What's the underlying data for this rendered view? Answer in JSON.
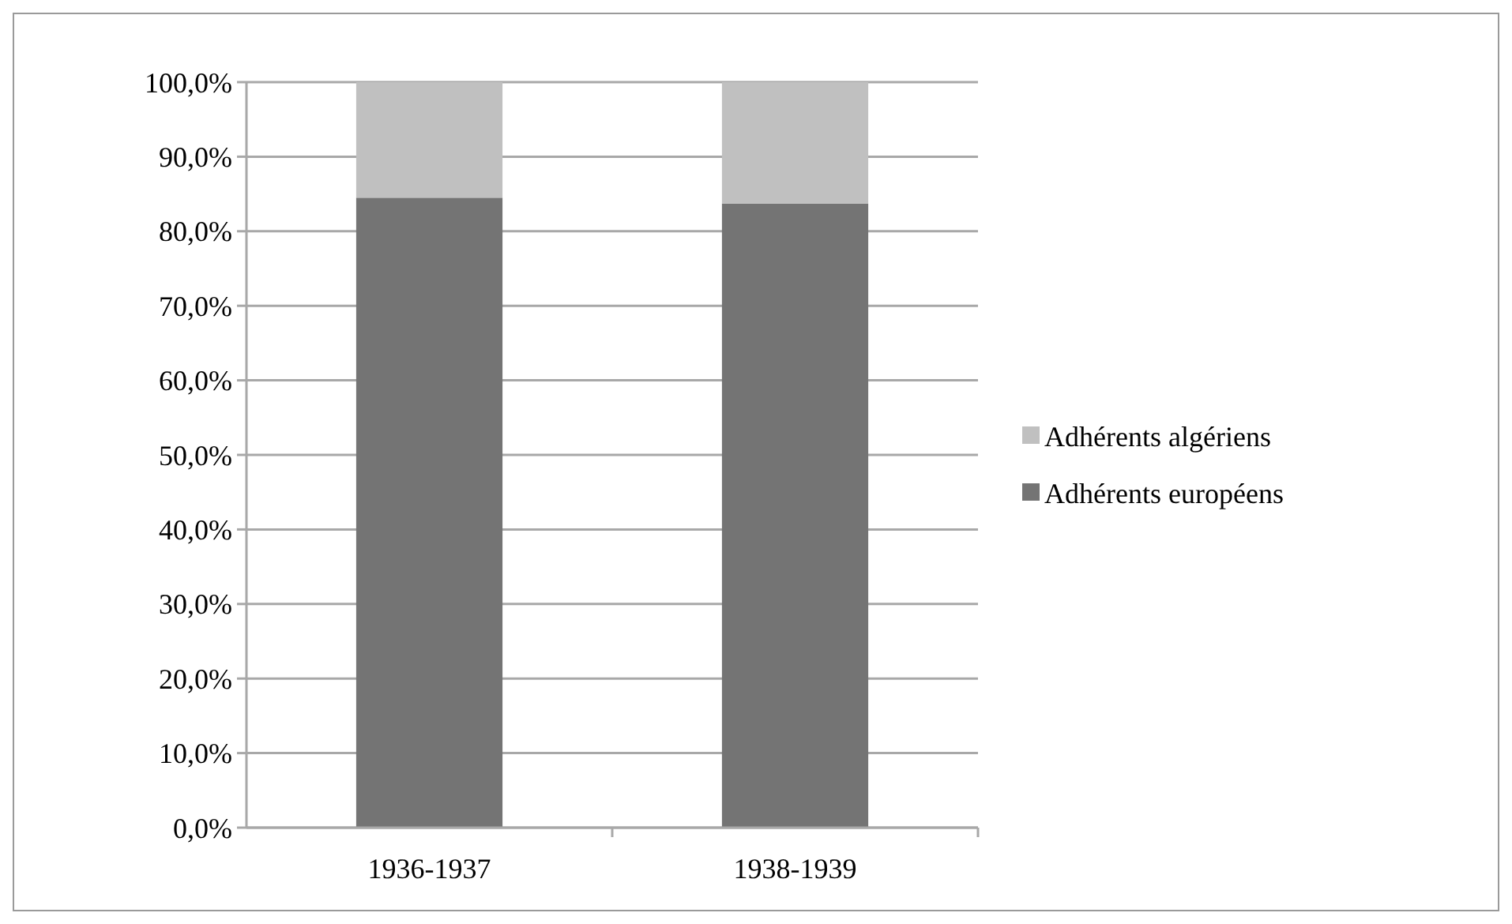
{
  "chart_data": {
    "type": "bar",
    "stacked": true,
    "categories": [
      "1936-1937",
      "1938-1939"
    ],
    "series": [
      {
        "name": "Adhérents européens",
        "color": "#747474",
        "values": [
          84.5,
          83.7
        ]
      },
      {
        "name": "Adhérents algériens",
        "color": "#c0c0c0",
        "values": [
          15.5,
          16.3
        ]
      }
    ],
    "ylim": [
      0,
      100
    ],
    "yticks": [
      {
        "value": 0,
        "label": "0,0%"
      },
      {
        "value": 10,
        "label": "10,0%"
      },
      {
        "value": 20,
        "label": "20,0%"
      },
      {
        "value": 30,
        "label": "30,0%"
      },
      {
        "value": 40,
        "label": "40,0%"
      },
      {
        "value": 50,
        "label": "50,0%"
      },
      {
        "value": 60,
        "label": "60,0%"
      },
      {
        "value": 70,
        "label": "70,0%"
      },
      {
        "value": 80,
        "label": "80,0%"
      },
      {
        "value": 90,
        "label": "90,0%"
      },
      {
        "value": 100,
        "label": "100,0%"
      }
    ],
    "grid": "y",
    "legend": "right"
  }
}
